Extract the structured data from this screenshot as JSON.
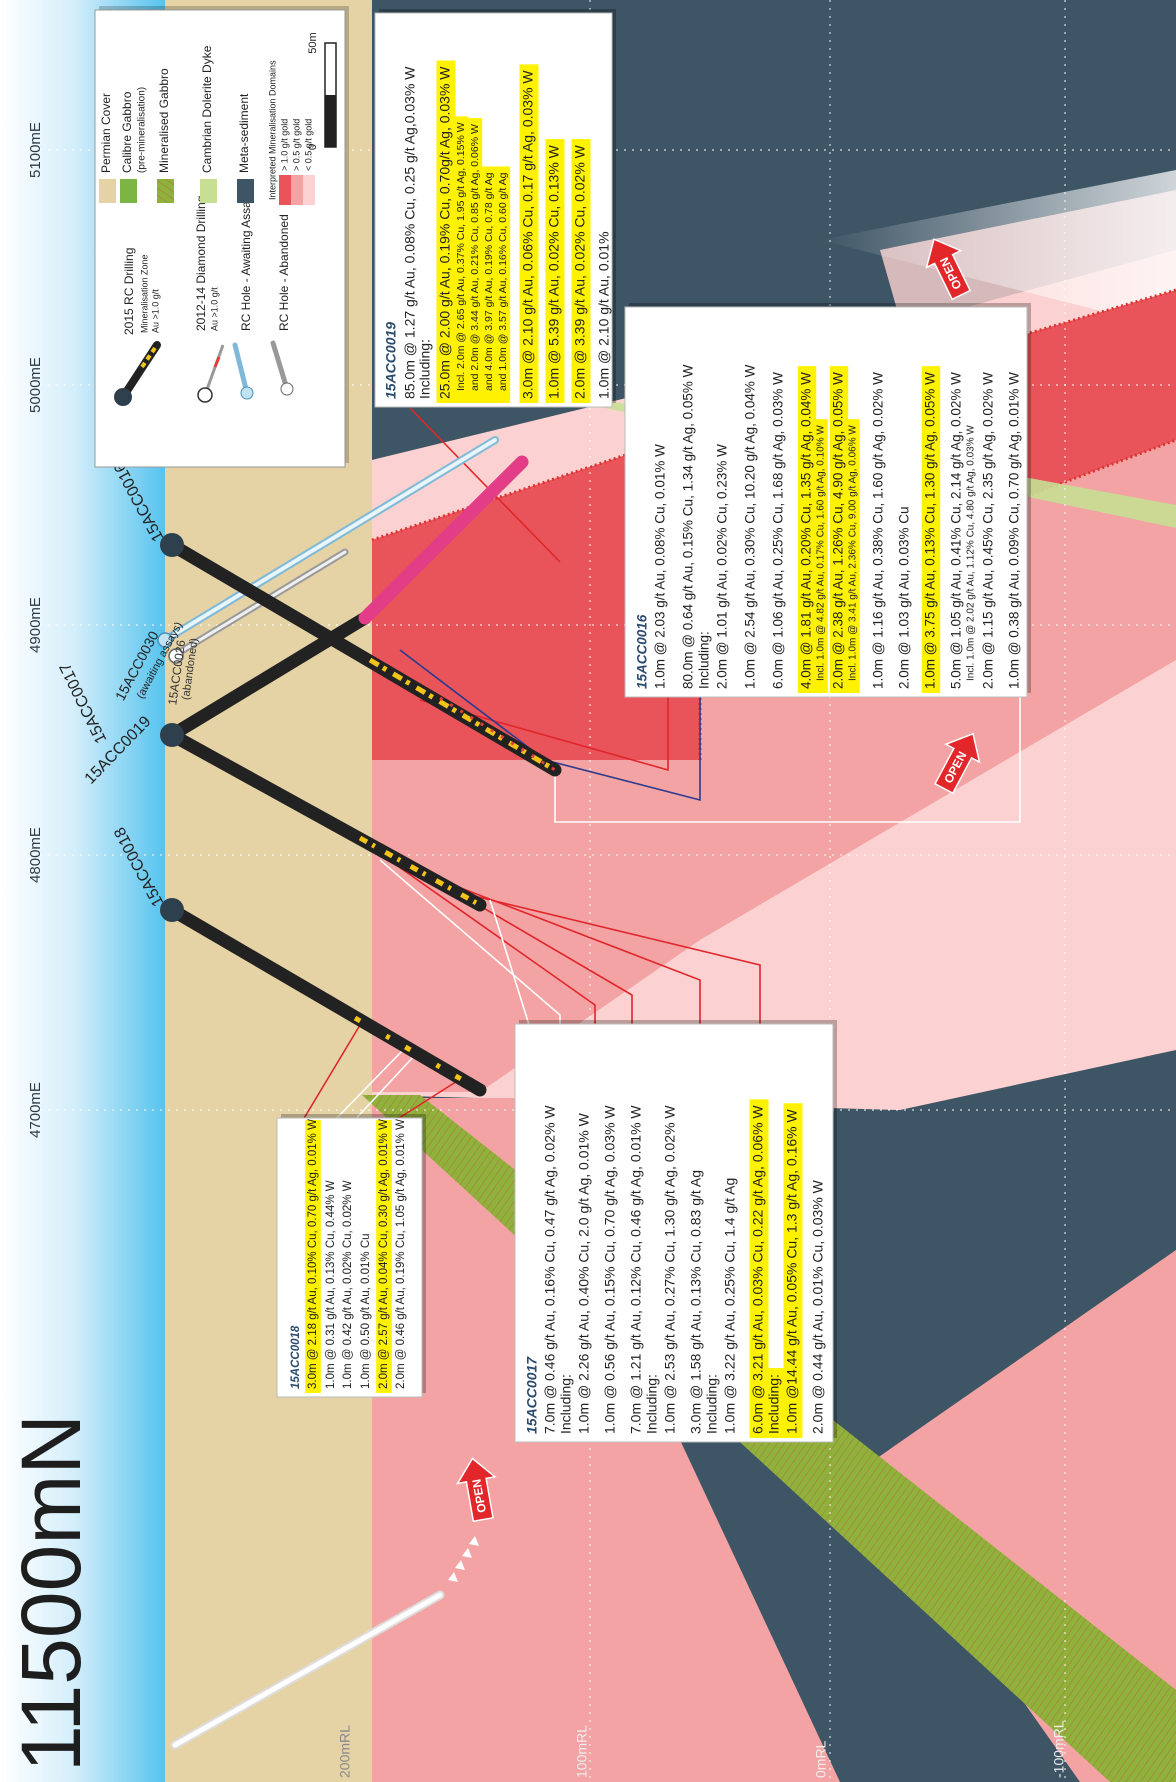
{
  "title": "11500mN",
  "eastings": [
    "4700mE",
    "4800mE",
    "4900mE",
    "5000mE",
    "5100mE"
  ],
  "elevations": [
    "200mRL",
    "100mRL",
    "0mRL",
    "-100mRL"
  ],
  "holes": [
    "15ACC0018",
    "15ACC0017",
    "15ACC0019",
    "15ACC0016"
  ],
  "other_holes": [
    {
      "label": "15ACC0030",
      "note": "(awaiting assays)"
    },
    {
      "label": "15ACC0026",
      "note": "(abandoned)"
    }
  ],
  "open_labels": [
    "OPEN",
    "OPEN",
    "OPEN"
  ],
  "legend": {
    "drilling": [
      "2015 RC Drilling",
      "Mineralisation Zone",
      "Au >1.0 g/t",
      "2012-14 Diamond Drilling",
      "Au >1.0 g/t",
      "RC Hole - Awaiting Assays",
      "RC Hole - Abandoned"
    ],
    "units": [
      {
        "label": "Permian Cover",
        "color": "#e5d3a6"
      },
      {
        "label": "Calibre Gabbro",
        "note": "(pre-mineralisation)",
        "color": "#7db544"
      },
      {
        "label": "Mineralised Gabbro",
        "color": "#8fb23a"
      },
      {
        "label": "Cambrian Dolerite Dyke",
        "color": "#c6df93"
      },
      {
        "label": "Meta-sediment",
        "color": "#3e5565"
      }
    ],
    "domains_title": "Interpreted Mineralisation Domains",
    "domains": [
      {
        "label": "> 1.0 g/t gold",
        "color": "#e9545a"
      },
      {
        "label": "> 0.5 g/t gold",
        "color": "#f3a3a3"
      },
      {
        "label": "< 0.5 g/t gold",
        "color": "#fbd2d1"
      }
    ],
    "scale": [
      "0",
      "50m"
    ]
  },
  "intercepts": [
    {
      "title": "15ACC0018",
      "rows": [
        {
          "text": "3.0m @ 2.18 g/t Au, 0.10% Cu, 0.70 g/t Ag, 0.01% W",
          "highlight": true
        },
        {
          "text": "1.0m @ 0.31 g/t Au, 0.13% Cu, 0.44% W"
        },
        {
          "text": "1.0m @ 0.42 g/t Au, 0.02% Cu, 0.02% W"
        },
        {
          "text": "1.0m @ 0.50 g/t Au, 0.01% Cu"
        },
        {
          "text": "2.0m @ 2.57 g/t Au, 0.04% Cu, 0.30 g/t Ag, 0.01% W",
          "highlight": true
        },
        {
          "text": "2.0m @ 0.46 g/t Au, 0.19% Cu, 1.05 g/t Ag, 0.01% W"
        }
      ]
    },
    {
      "title": "15ACC0017",
      "rows": [
        {
          "text": "7.0m @ 0.46 g/t Au, 0.16% Cu, 0.47 g/t Ag, 0.02% W"
        },
        {
          "text": "Including:"
        },
        {
          "text": "1.0m @ 2.26 g/t Au, 0.40% Cu, 2.0 g/t Ag, 0.01% W"
        },
        {
          "text": "1.0m @ 0.56 g/t Au, 0.15% Cu, 0.70 g/t Ag, 0.03% W"
        },
        {
          "text": "7.0m @ 1.21 g/t Au, 0.12% Cu, 0.46 g/t Ag, 0.01% W"
        },
        {
          "text": "Including:"
        },
        {
          "text": "1.0m @ 2.53 g/t Au, 0.27% Cu, 1.30 g/t Ag, 0.02% W"
        },
        {
          "text": "3.0m @ 1.58 g/t Au, 0.13% Cu, 0.83 g/t Ag"
        },
        {
          "text": "Including:"
        },
        {
          "text": "1.0m @ 3.22 g/t Au, 0.25% Cu, 1.4 g/t Ag"
        },
        {
          "text": "6.0m @ 3.21 g/t Au, 0.03% Cu, 0.22 g/t Ag, 0.06% W",
          "highlight": true
        },
        {
          "text": "Including:",
          "highlight": true
        },
        {
          "text": "1.0m @14.44 g/t Au, 0.05% Cu, 1.3 g/t Ag, 0.16% W",
          "highlight": true
        },
        {
          "text": "2.0m @ 0.44 g/t Au, 0.01% Cu, 0.03% W"
        }
      ]
    },
    {
      "title": "15ACC0016",
      "rows": [
        {
          "text": "1.0m @ 2.03 g/t Au, 0.08% Cu, 0.01% W"
        },
        {
          "text": "80.0m @ 0.64 g/t Au, 0.15% Cu, 1.34 g/t Ag, 0.05% W"
        },
        {
          "text": "Including:"
        },
        {
          "text": "2.0m @ 1.01 g/t Au, 0.02% Cu, 0.23% W"
        },
        {
          "text": "1.0m @ 2.54 g/t Au, 0.30% Cu, 10.20 g/t Ag, 0.04% W"
        },
        {
          "text": "6.0m @ 1.06 g/t Au, 0.25% Cu, 1.68 g/t Ag, 0.03% W"
        },
        {
          "text": "4.0m @ 1.81 g/t Au, 0.20% Cu, 1.35 g/t Ag, 0.04% W",
          "highlight": true
        },
        {
          "text": "Incl. 1.0m @ 4.82 g/t Au, 0.17% Cu, 1.60 g/t Ag, 0.10% W",
          "highlight": true,
          "small": true
        },
        {
          "text": "2.0m @ 2.38 g/t Au, 1.26% Cu, 4.90 g/t Ag, 0.05% W",
          "highlight": true
        },
        {
          "text": "Incl. 1.0m @ 3.41 g/t Au, 2.36% Cu, 9.00 g/t Ag, 0.06% W",
          "highlight": true,
          "small": true
        },
        {
          "text": "1.0m @ 1.16 g/t Au, 0.38% Cu, 1.60 g/t Ag, 0.02% W"
        },
        {
          "text": "2.0m @ 1.03 g/t Au, 0.03% Cu"
        },
        {
          "text": "1.0m @ 3.75 g/t Au, 0.13% Cu, 1.30 g/t Ag, 0.05% W",
          "highlight": true
        },
        {
          "text": "5.0m @ 1.05 g/t Au, 0.41% Cu, 2.14 g/t Ag, 0.02% W"
        },
        {
          "text": "Incl. 1.0m @ 2.02 g/t Au, 1.12% Cu, 4.80 g/t Ag, 0.03% W",
          "small": true
        },
        {
          "text": "2.0m @ 1.15 g/t Au, 0.45% Cu, 2.35 g/t Ag, 0.02% W"
        },
        {
          "text": "1.0m @ 0.38 g/t Au, 0.09% Cu, 0.70 g/t Ag, 0.01% W"
        }
      ]
    },
    {
      "title": "15ACC0019",
      "rows": [
        {
          "text": "85.0m @ 1.27 g/t Au, 0.08% Cu, 0.25 g/t Ag,0.03% W"
        },
        {
          "text": "Including:"
        },
        {
          "text": "25.0m @ 2.00 g/t Au, 0.19% Cu, 0.70g/t Ag, 0.03% W",
          "highlight": true
        },
        {
          "text": "Incl. 2.0m @ 2.65 g/t Au, 0.37% Cu, 1.95 g/t Ag, 0.15% W",
          "highlight": true,
          "small": true
        },
        {
          "text": "and 2.0m @ 3.44 g/t Au, 0.21% Cu, 0.85 g/t Ag, 0.06% W",
          "highlight": true,
          "small": true
        },
        {
          "text": "and 4.0m @ 3.97 g/t Au, 0.19% Cu, 0.78 g/t Ag",
          "highlight": true,
          "small": true
        },
        {
          "text": "and 1.0m @ 3.57 g/t Au, 0.16% Cu, 0.60 g/t Ag",
          "highlight": true,
          "small": true
        },
        {
          "text": "3.0m @ 2.10 g/t Au, 0.06% Cu, 0.17 g/t Ag, 0.03% W",
          "highlight": true
        },
        {
          "text": "1.0m @ 5.39 g/t Au, 0.02% Cu, 0.13% W",
          "highlight": true
        },
        {
          "text": "2.0m @ 3.39 g/t Au, 0.02% Cu, 0.02% W",
          "highlight": true
        },
        {
          "text": "1.0m @ 2.10 g/t Au, 0.01%"
        }
      ]
    }
  ]
}
